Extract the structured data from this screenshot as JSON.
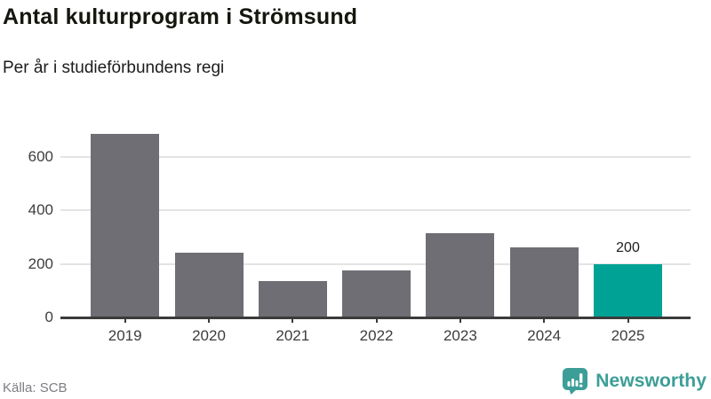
{
  "header": {
    "title": "Antal kulturprogram i Strömsund",
    "subtitle": "Per år i studieförbundens regi"
  },
  "chart_data": {
    "type": "bar",
    "title": "Antal kulturprogram i Strömsund",
    "subtitle": "Per år i studieförbundens regi",
    "categories": [
      "2019",
      "2020",
      "2021",
      "2022",
      "2023",
      "2024",
      "2025"
    ],
    "values": [
      685,
      240,
      135,
      175,
      315,
      260,
      200
    ],
    "data_labels": [
      null,
      null,
      null,
      null,
      null,
      null,
      "200"
    ],
    "highlight_index": 6,
    "yticks": [
      0,
      200,
      400,
      600
    ],
    "ylim": [
      0,
      724
    ],
    "grid": "horizontal",
    "legend": "none",
    "colors": {
      "bar": "#6e6e74",
      "highlight": "#00a296",
      "gridline": "#e4e4e4",
      "axis": "#3b3b3b",
      "tick_label": "#3d3d3d"
    }
  },
  "footer": {
    "source": "Källa: SCB",
    "brand": "Newsworthy",
    "brand_color": "#3c9e97"
  }
}
